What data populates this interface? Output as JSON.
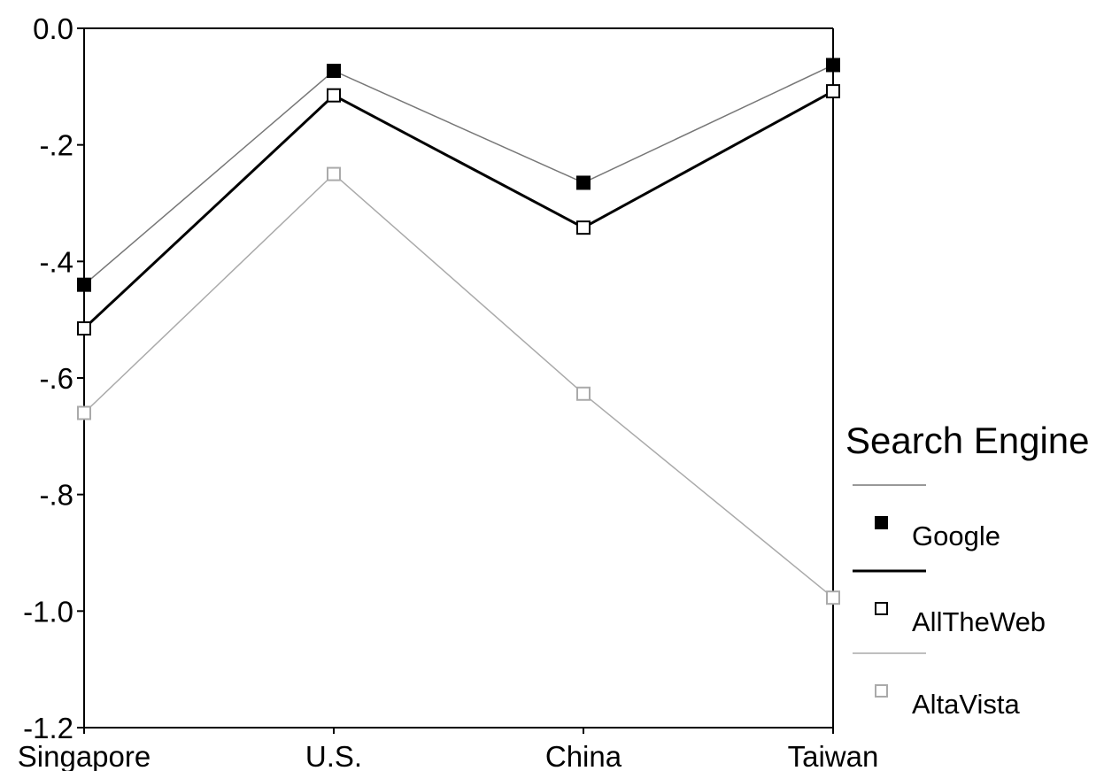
{
  "chart_data": {
    "type": "line",
    "title": "",
    "xlabel": "",
    "ylabel": "",
    "categories": [
      "Singapore",
      "U.S.",
      "China",
      "Taiwan"
    ],
    "y_ticks": [
      "0.0",
      "-.2",
      "-.4",
      "-.6",
      "-.8",
      "-1.0",
      "-1.2"
    ],
    "ylim": [
      -1.2,
      0.0
    ],
    "grid": false,
    "legend_position": "right",
    "legend_title": "Search Engine",
    "series": [
      {
        "name": "Google",
        "values": [
          -0.44,
          -0.073,
          -0.265,
          -0.063
        ],
        "color": "#777777",
        "marker": "filled-square"
      },
      {
        "name": "AllTheWeb",
        "values": [
          -0.515,
          -0.115,
          -0.342,
          -0.108
        ],
        "color": "#000000",
        "marker": "open-square"
      },
      {
        "name": "AltaVista",
        "values": [
          -0.66,
          -0.25,
          -0.627,
          -0.977
        ],
        "color": "#aaaaaa",
        "marker": "open-square"
      }
    ]
  }
}
